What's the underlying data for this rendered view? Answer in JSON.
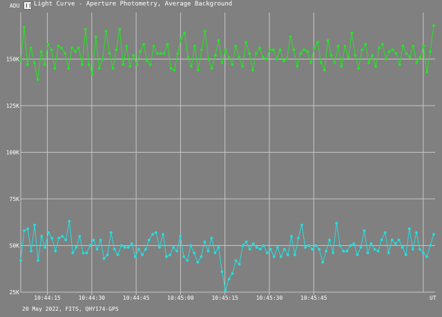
{
  "window": {
    "title": "Light Curve - Aperture Photometry, Average Background",
    "icon": "app-logo-icon"
  },
  "footer": {
    "info": "20 May 2022, FITS, QHY174-GPS"
  },
  "chart_data": {
    "type": "line",
    "title": "",
    "xlabel": "UT",
    "ylabel": "ADU",
    "ylim": [
      25000,
      175000
    ],
    "xlim": [
      "10:44:06",
      "10:46:26"
    ],
    "y_ticks": [
      {
        "value": 25000,
        "label": "25K"
      },
      {
        "value": 50000,
        "label": "50K"
      },
      {
        "value": 75000,
        "label": "75K"
      },
      {
        "value": 100000,
        "label": "100K"
      },
      {
        "value": 125000,
        "label": "125K"
      },
      {
        "value": 150000,
        "label": "150K"
      }
    ],
    "x_ticks": [
      "10:44:15",
      "10:44:30",
      "10:44:45",
      "10:45:00",
      "10:45:15",
      "10:45:30",
      "10:45:45"
    ],
    "extra_vline": "10:46:22",
    "grid": true,
    "series": [
      {
        "color": "#22e622",
        "values": [
          149000,
          167000,
          147000,
          156000,
          148000,
          139000,
          154000,
          147000,
          158000,
          155000,
          145000,
          157000,
          156000,
          153000,
          145000,
          156000,
          154000,
          156000,
          147000,
          166000,
          147000,
          142000,
          162000,
          145000,
          150000,
          165000,
          153000,
          145000,
          155000,
          166000,
          147000,
          157000,
          146000,
          152000,
          147000,
          154000,
          158000,
          149000,
          147000,
          157000,
          153000,
          153000,
          153000,
          158000,
          145000,
          144000,
          153000,
          161000,
          164000,
          151000,
          146000,
          157000,
          144000,
          155000,
          165000,
          150000,
          145000,
          152000,
          160000,
          148000,
          155000,
          151000,
          147000,
          157000,
          151000,
          146000,
          159000,
          153000,
          144000,
          153000,
          156000,
          151000,
          150000,
          155000,
          155000,
          150000,
          155000,
          149000,
          150000,
          162000,
          155000,
          146000,
          153000,
          155000,
          154000,
          148000,
          156000,
          159000,
          148000,
          144000,
          160000,
          152000,
          148000,
          157000,
          146000,
          157000,
          151000,
          164000,
          152000,
          145000,
          155000,
          158000,
          148000,
          152000,
          146000,
          156000,
          158000,
          150000,
          154000,
          155000,
          153000,
          147000,
          157000,
          153000,
          151000,
          157000,
          148000,
          151000,
          157000,
          143000,
          154000,
          168000
        ]
      },
      {
        "color": "#22e0e0",
        "values": [
          42000,
          58000,
          59000,
          47000,
          61000,
          42000,
          55000,
          49000,
          57000,
          54000,
          47000,
          54000,
          55000,
          53000,
          63000,
          46000,
          49000,
          55000,
          46000,
          46000,
          50000,
          53000,
          48000,
          53000,
          43000,
          45000,
          57000,
          48000,
          45000,
          50000,
          49000,
          49000,
          51000,
          44000,
          48000,
          45000,
          48000,
          53000,
          56000,
          57000,
          49000,
          56000,
          44000,
          45000,
          49000,
          47000,
          55000,
          44000,
          42000,
          50000,
          46000,
          41000,
          44000,
          52000,
          47000,
          54000,
          46000,
          49000,
          36000,
          26000,
          32000,
          35000,
          42000,
          40000,
          50000,
          52000,
          48000,
          51000,
          49000,
          48000,
          50000,
          46000,
          48000,
          44000,
          49000,
          44000,
          48000,
          45000,
          55000,
          45000,
          54000,
          61000,
          49000,
          50000,
          48000,
          50000,
          48000,
          41000,
          47000,
          53000,
          46000,
          62000,
          50000,
          47000,
          47000,
          50000,
          51000,
          45000,
          49000,
          58000,
          46000,
          51000,
          48000,
          47000,
          53000,
          57000,
          46000,
          53000,
          51000,
          53000,
          49000,
          45000,
          59000,
          48000,
          57000,
          48000,
          46000,
          44000,
          50000,
          56000
        ]
      }
    ]
  }
}
